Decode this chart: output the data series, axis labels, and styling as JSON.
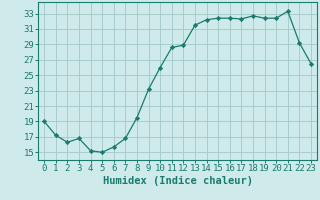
{
  "x": [
    0,
    1,
    2,
    3,
    4,
    5,
    6,
    7,
    8,
    9,
    10,
    11,
    12,
    13,
    14,
    15,
    16,
    17,
    18,
    19,
    20,
    21,
    22,
    23
  ],
  "y": [
    19.0,
    17.2,
    16.3,
    16.8,
    15.2,
    15.0,
    15.7,
    16.8,
    19.5,
    23.2,
    26.0,
    28.6,
    28.9,
    31.5,
    32.2,
    32.4,
    32.4,
    32.3,
    32.7,
    32.4,
    32.4,
    33.3,
    29.2,
    26.5
  ],
  "line_color": "#1a7a6e",
  "marker": "D",
  "marker_size": 2.2,
  "bg_color": "#ceeaea",
  "grid_color": "#a8cccc",
  "xlabel": "Humidex (Indice chaleur)",
  "ytick_vals": [
    15,
    17,
    19,
    21,
    23,
    25,
    27,
    29,
    31,
    33
  ],
  "xlim": [
    -0.5,
    23.5
  ],
  "ylim": [
    14.0,
    34.5
  ],
  "xlabel_fontsize": 7.5,
  "tick_fontsize": 6.5,
  "linewidth": 0.9
}
